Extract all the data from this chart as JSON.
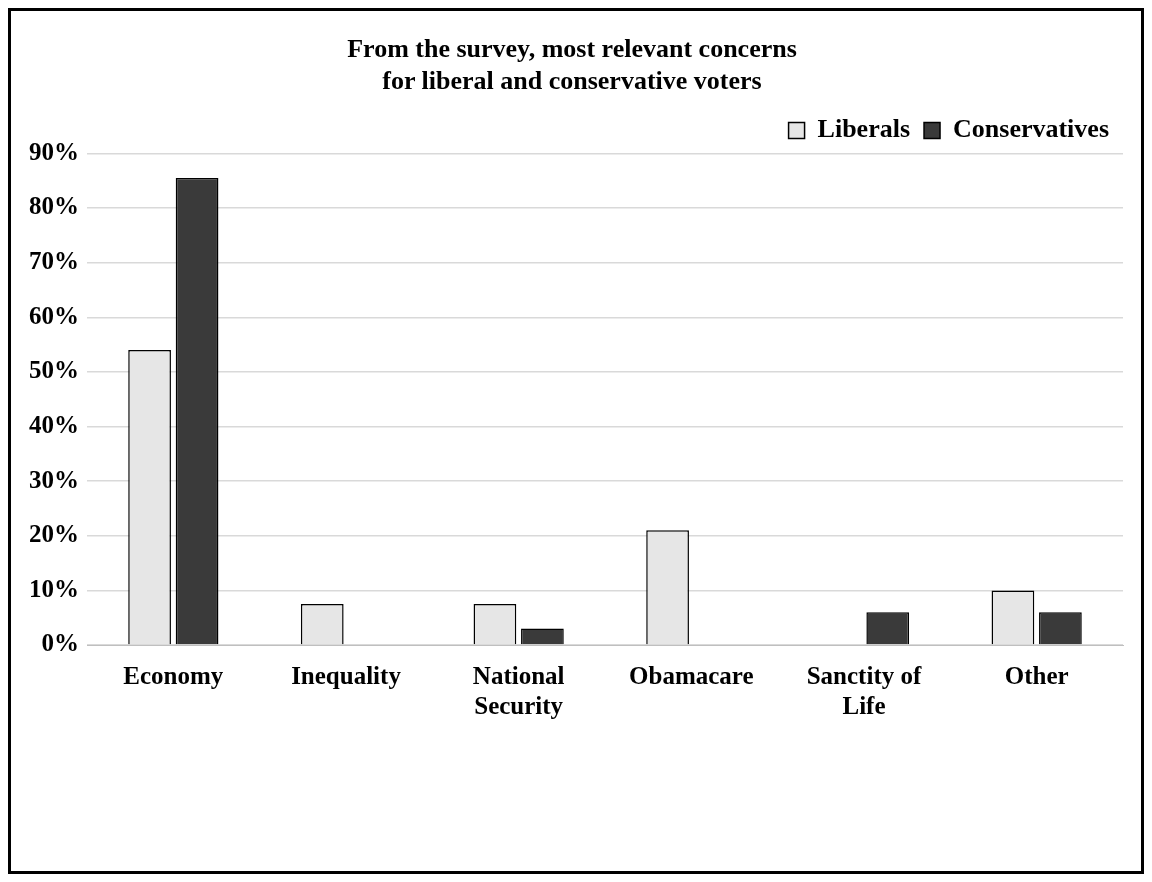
{
  "chart_data": {
    "type": "bar",
    "title": "From the survey, most relevant concerns\nfor liberal and conservative voters",
    "categories": [
      "Economy",
      "Inequality",
      "National Security",
      "Obamacare",
      "Sanctity of Life",
      "Other"
    ],
    "series": [
      {
        "name": "Liberals",
        "color": "#e6e6e6",
        "values": [
          54,
          7.5,
          7.5,
          21,
          0,
          10
        ]
      },
      {
        "name": "Conservatives",
        "color": "#3a3a3a",
        "values": [
          85.5,
          0,
          3,
          0,
          6,
          6
        ]
      }
    ],
    "ylim": [
      0,
      90
    ],
    "yticks": [
      {
        "value": 0,
        "label": "0%"
      },
      {
        "value": 10,
        "label": "10%"
      },
      {
        "value": 20,
        "label": "20%"
      },
      {
        "value": 30,
        "label": "30%"
      },
      {
        "value": 40,
        "label": "40%"
      },
      {
        "value": 50,
        "label": "50%"
      },
      {
        "value": 60,
        "label": "60%"
      },
      {
        "value": 70,
        "label": "70%"
      },
      {
        "value": 80,
        "label": "80%"
      },
      {
        "value": 90,
        "label": "90%"
      }
    ],
    "grid": "y",
    "legend": "top right"
  }
}
